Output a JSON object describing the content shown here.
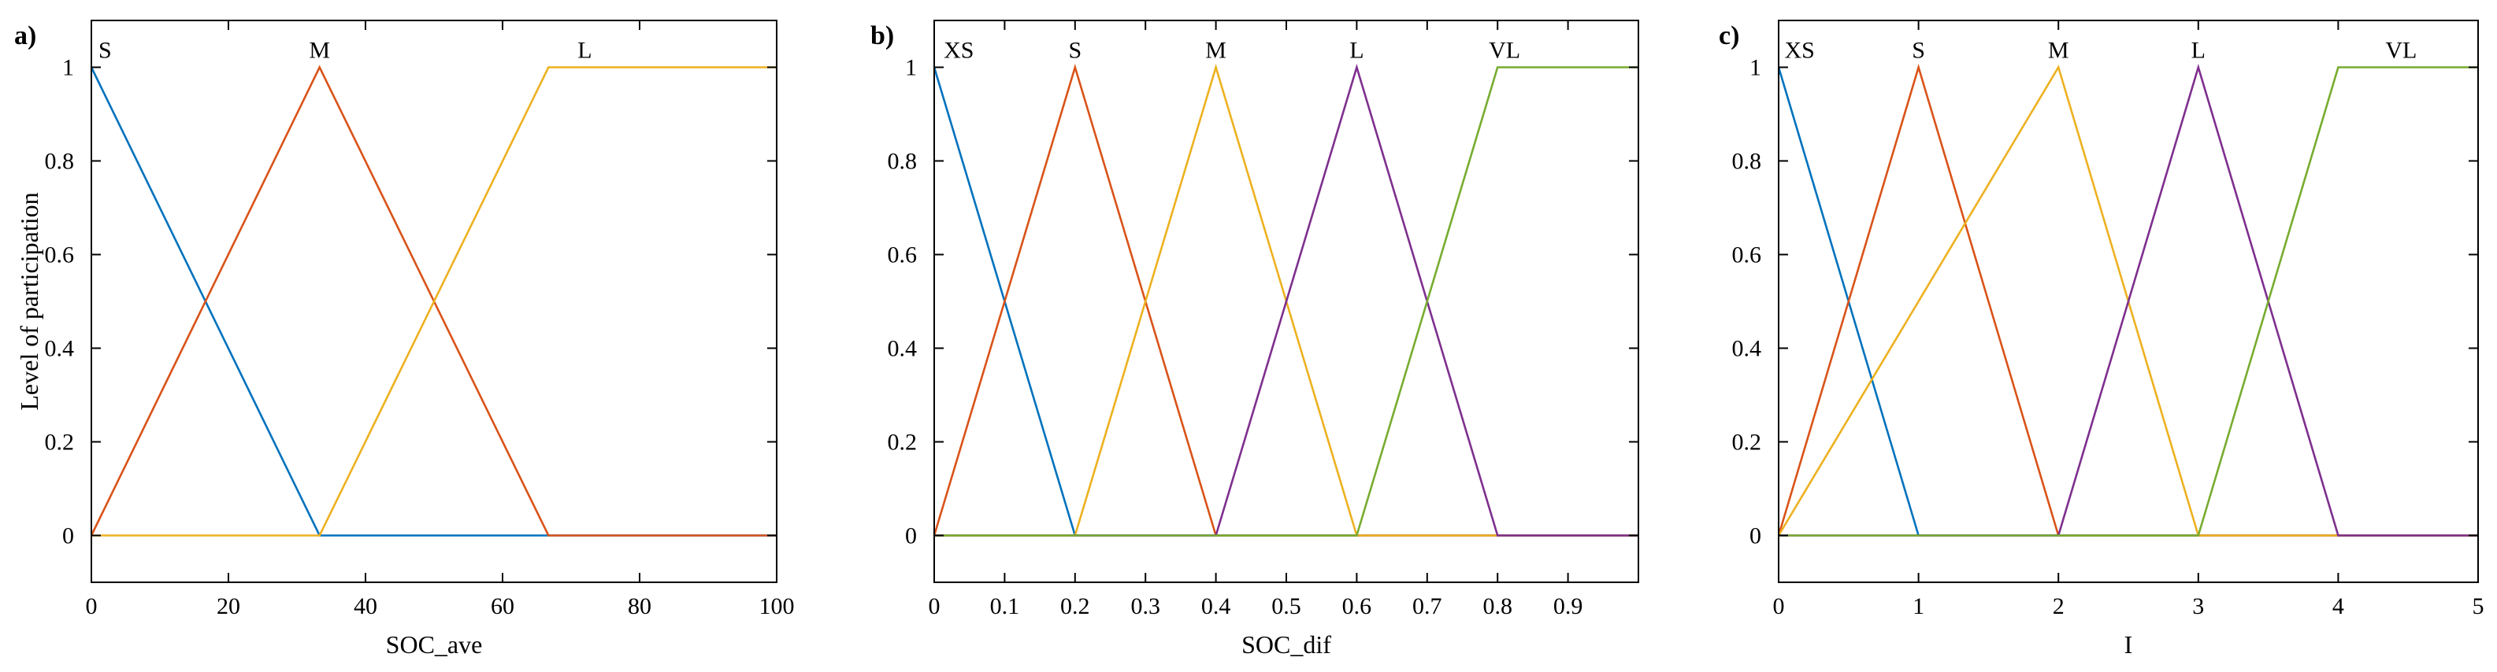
{
  "figure": {
    "colors": [
      "#0072BD",
      "#D95319",
      "#EDB120",
      "#7E2F8E",
      "#77AC30"
    ],
    "axis_color": "#000000"
  },
  "chart_data": [
    {
      "type": "line",
      "panel_label": "a)",
      "title": "",
      "xlabel": "SOC_ave",
      "ylabel": "Level of participation",
      "xlim": [
        0,
        100
      ],
      "ylim": [
        -0.1,
        1.1
      ],
      "xticks": [
        0,
        20,
        40,
        60,
        80,
        100
      ],
      "xtick_labels": [
        "0",
        "20",
        "40",
        "60",
        "80",
        "100"
      ],
      "yticks": [
        0,
        0.2,
        0.4,
        0.6,
        0.8,
        1
      ],
      "ytick_labels": [
        "0",
        "0.2",
        "0.4",
        "0.6",
        "0.8",
        "1"
      ],
      "grid": false,
      "series": [
        {
          "name": "S",
          "color": "#0072BD",
          "x": [
            0,
            33.3,
            100
          ],
          "y": [
            1,
            0,
            0
          ],
          "label_x": 2
        },
        {
          "name": "M",
          "color": "#D95319",
          "x": [
            0,
            33.3,
            66.7,
            100
          ],
          "y": [
            0,
            1,
            0,
            0
          ],
          "label_x": 33.3
        },
        {
          "name": "L",
          "color": "#EDB120",
          "x": [
            0,
            33.3,
            66.7,
            100
          ],
          "y": [
            0,
            0,
            1,
            1
          ],
          "label_x": 72
        }
      ]
    },
    {
      "type": "line",
      "panel_label": "b)",
      "title": "",
      "xlabel": "SOC_dif",
      "ylabel": "",
      "xlim": [
        0,
        1
      ],
      "ylim": [
        -0.1,
        1.1
      ],
      "xticks": [
        0,
        0.1,
        0.2,
        0.3,
        0.4,
        0.5,
        0.6,
        0.7,
        0.8,
        0.9
      ],
      "xtick_labels": [
        "0",
        "0.1",
        "0.2",
        "0.3",
        "0.4",
        "0.5",
        "0.6",
        "0.7",
        "0.8",
        "0.9"
      ],
      "yticks": [
        0,
        0.2,
        0.4,
        0.6,
        0.8,
        1
      ],
      "ytick_labels": [
        "0",
        "0.2",
        "0.4",
        "0.6",
        "0.8",
        "1"
      ],
      "grid": false,
      "series": [
        {
          "name": "XS",
          "color": "#0072BD",
          "x": [
            0,
            0.2,
            1
          ],
          "y": [
            1,
            0,
            0
          ],
          "label_x": 0.035
        },
        {
          "name": "S",
          "color": "#D95319",
          "x": [
            0,
            0.2,
            0.4,
            1
          ],
          "y": [
            0,
            1,
            0,
            0
          ],
          "label_x": 0.2
        },
        {
          "name": "M",
          "color": "#EDB120",
          "x": [
            0,
            0.2,
            0.4,
            0.6,
            1
          ],
          "y": [
            0,
            0,
            1,
            0,
            0
          ],
          "label_x": 0.4
        },
        {
          "name": "L",
          "color": "#7E2F8E",
          "x": [
            0,
            0.4,
            0.6,
            0.8,
            1
          ],
          "y": [
            0,
            0,
            1,
            0,
            0
          ],
          "label_x": 0.6
        },
        {
          "name": "VL",
          "color": "#77AC30",
          "x": [
            0,
            0.6,
            0.8,
            1
          ],
          "y": [
            0,
            0,
            1,
            1
          ],
          "label_x": 0.81
        }
      ]
    },
    {
      "type": "line",
      "panel_label": "c)",
      "title": "",
      "xlabel": "I",
      "ylabel": "",
      "xlim": [
        0,
        5
      ],
      "ylim": [
        -0.1,
        1.1
      ],
      "xticks": [
        0,
        1,
        2,
        3,
        4,
        5
      ],
      "xtick_labels": [
        "0",
        "1",
        "2",
        "3",
        "4",
        "5"
      ],
      "yticks": [
        0,
        0.2,
        0.4,
        0.6,
        0.8,
        1
      ],
      "ytick_labels": [
        "0",
        "0.2",
        "0.4",
        "0.6",
        "0.8",
        "1"
      ],
      "grid": false,
      "series": [
        {
          "name": "XS",
          "color": "#0072BD",
          "x": [
            0,
            1,
            5
          ],
          "y": [
            1,
            0,
            0
          ],
          "label_x": 0.15
        },
        {
          "name": "S",
          "color": "#D95319",
          "x": [
            0,
            1,
            2,
            5
          ],
          "y": [
            0,
            1,
            0,
            0
          ],
          "label_x": 1
        },
        {
          "name": "M",
          "color": "#EDB120",
          "x": [
            0,
            2,
            3,
            5
          ],
          "y": [
            0,
            1,
            0,
            0
          ],
          "label_x": 2
        },
        {
          "name": "L",
          "color": "#7E2F8E",
          "x": [
            0,
            2,
            3,
            4,
            5
          ],
          "y": [
            0,
            0,
            1,
            0,
            0
          ],
          "label_x": 3
        },
        {
          "name": "VL",
          "color": "#77AC30",
          "x": [
            0,
            3,
            4,
            5
          ],
          "y": [
            0,
            0,
            1,
            1
          ],
          "label_x": 4.45
        }
      ]
    }
  ]
}
